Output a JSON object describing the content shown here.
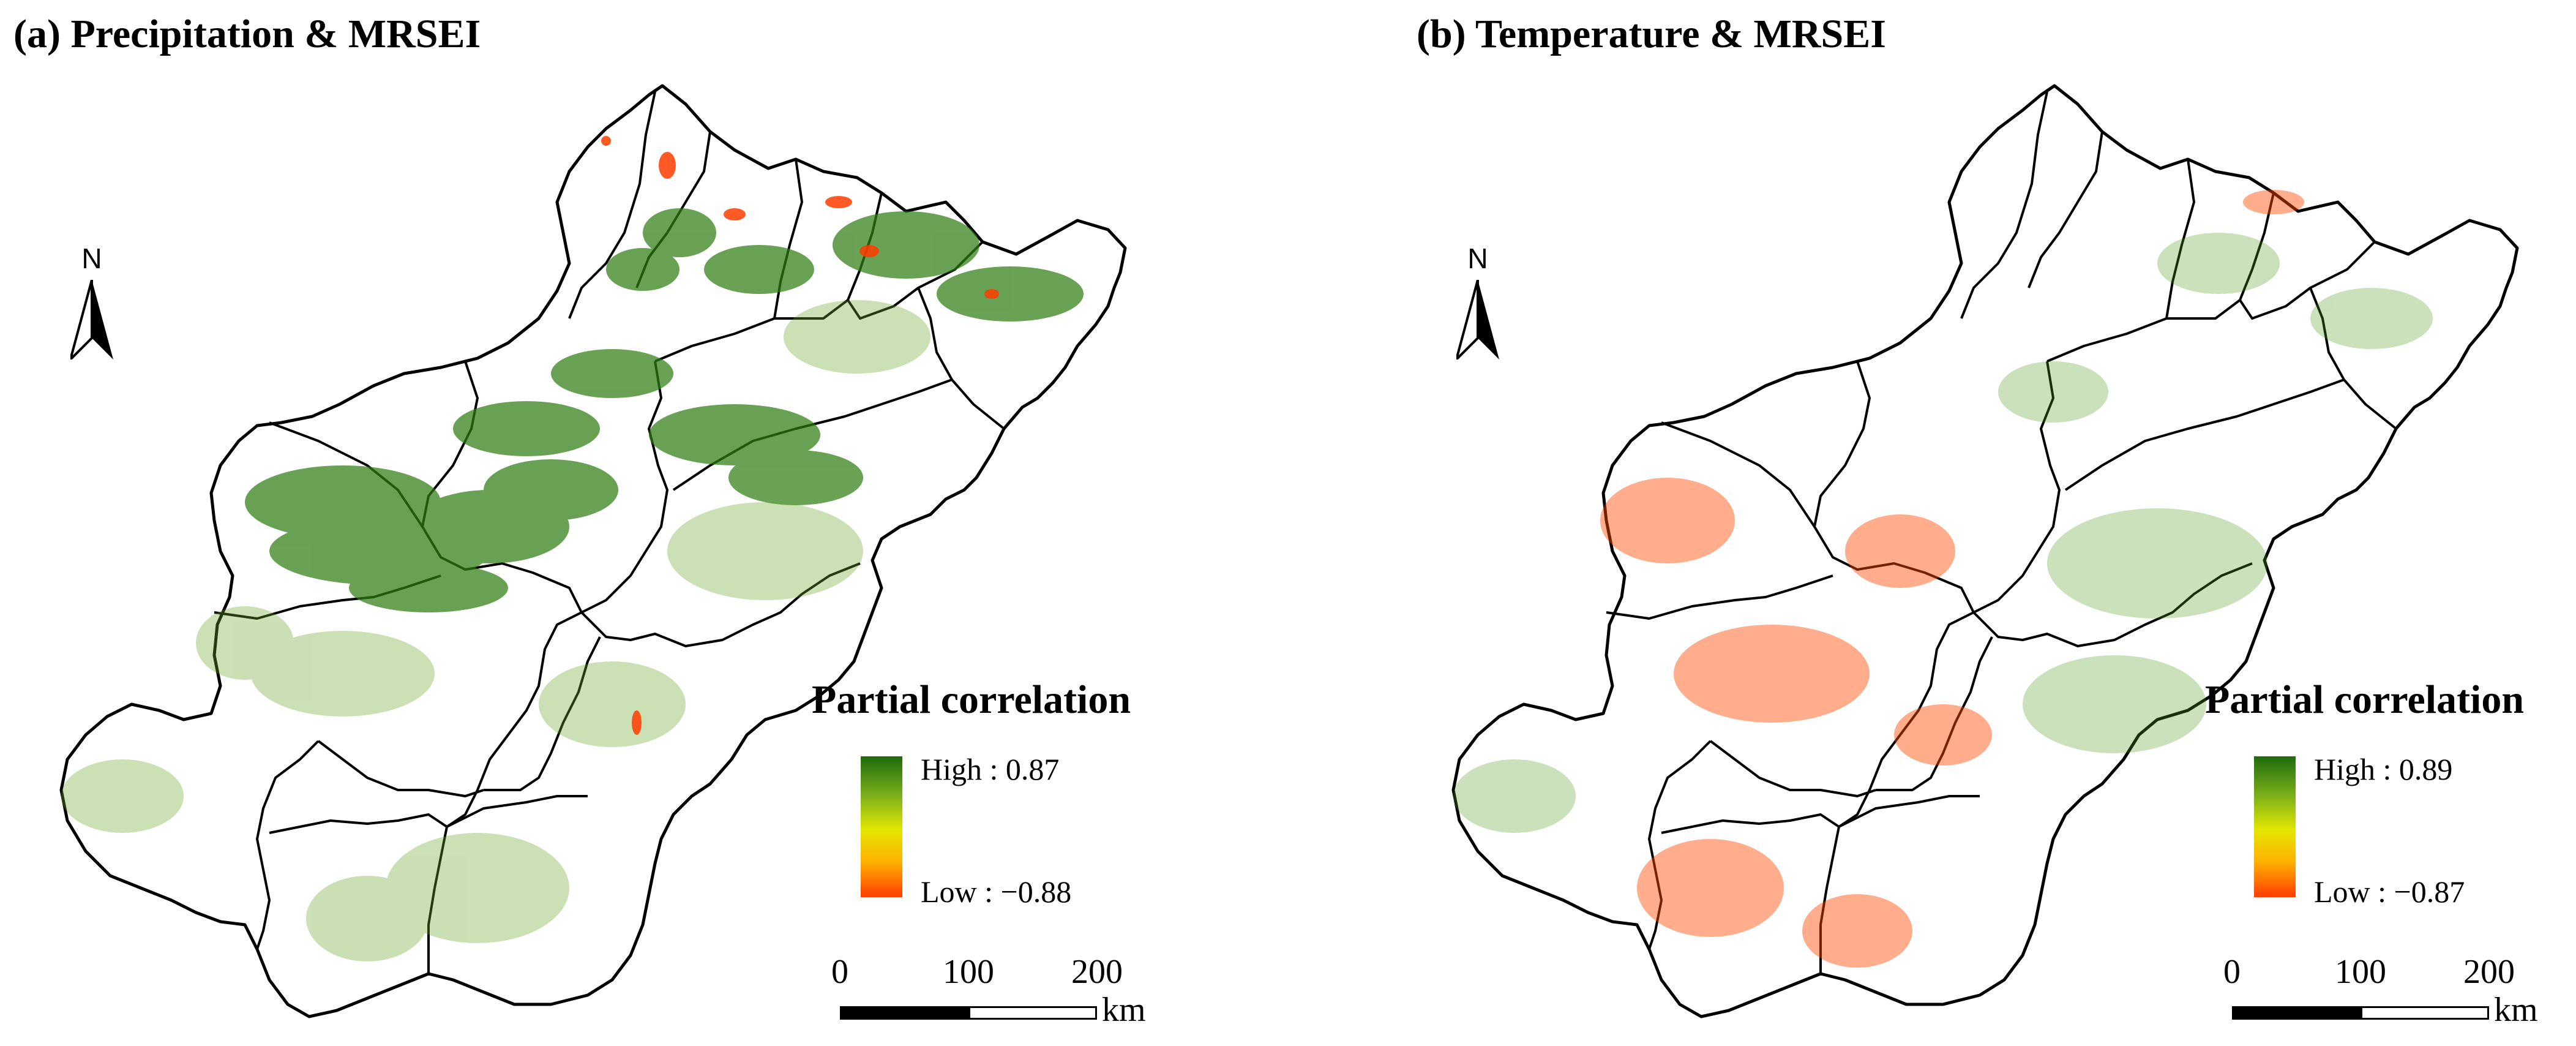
{
  "figure": {
    "colors": {
      "high": "#1e6b0e",
      "mid": "#e2e600",
      "low": "#ff3c00",
      "boundary": "#000000"
    },
    "panels": [
      {
        "id": "a",
        "title": "(a) Precipitation & MRSEI",
        "north_label": "N",
        "legend": {
          "title": "Partial correlation",
          "high_label": "High : 0.87",
          "low_label": "Low : −0.88",
          "high_value": 0.87,
          "low_value": -0.88
        },
        "scale": {
          "ticks": [
            "0",
            "100",
            "200"
          ],
          "unit": "km"
        }
      },
      {
        "id": "b",
        "title": "(b) Temperature & MRSEI",
        "north_label": "N",
        "legend": {
          "title": "Partial correlation",
          "high_label": "High : 0.89",
          "low_label": "Low : −0.87",
          "high_value": 0.89,
          "low_value": -0.87
        },
        "scale": {
          "ticks": [
            "0",
            "100",
            "200"
          ],
          "unit": "km"
        }
      }
    ]
  }
}
